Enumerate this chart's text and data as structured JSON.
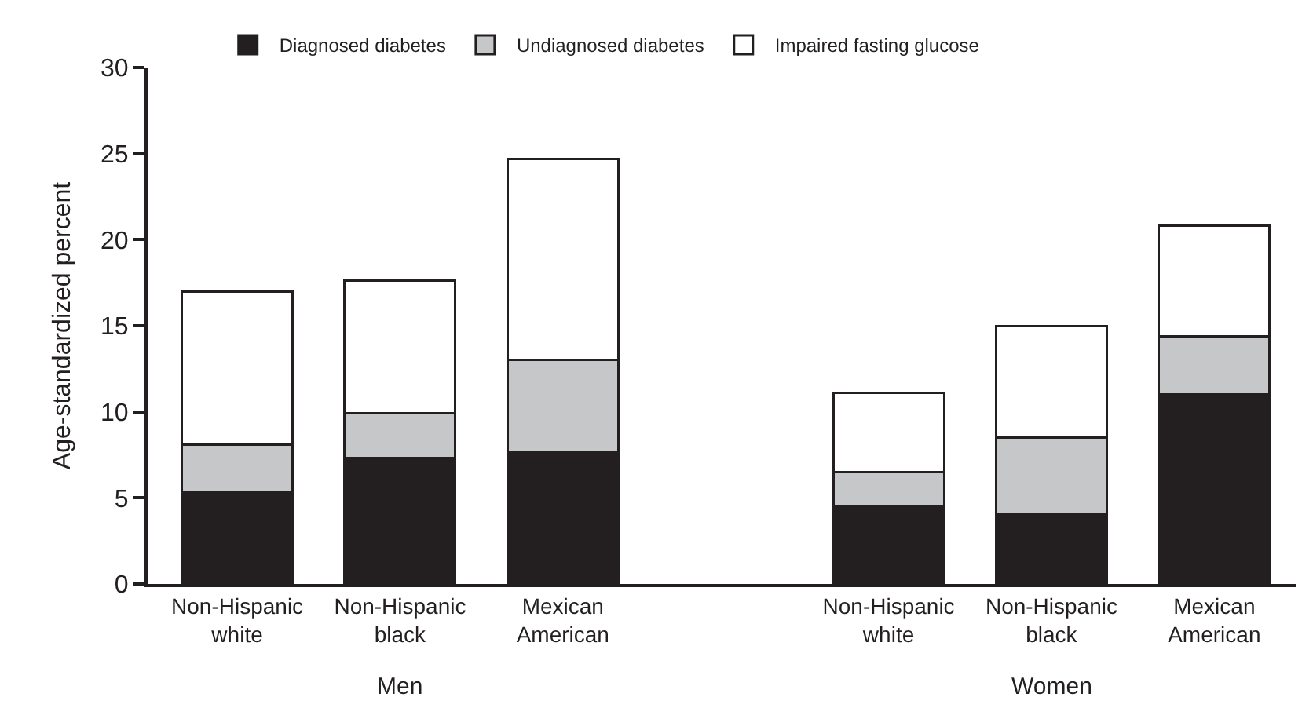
{
  "chart_data": {
    "type": "bar",
    "stacked": true,
    "ylabel": "Age-standardized percent",
    "categories": [
      "Non-Hispanic white",
      "Non-Hispanic black",
      "Mexican American",
      "Non-Hispanic white",
      "Non-Hispanic black",
      "Mexican American"
    ],
    "series": [
      {
        "name": "Diagnosed diabetes",
        "color": "#231f20",
        "values": [
          5.3,
          7.3,
          7.7,
          4.5,
          4.1,
          11.0
        ]
      },
      {
        "name": "Undiagnosed diabetes",
        "color": "#c6c7c9",
        "values": [
          2.8,
          2.6,
          5.3,
          2.0,
          4.4,
          3.4
        ]
      },
      {
        "name": "Impaired fasting glucose",
        "color": "#ffffff",
        "values": [
          8.9,
          7.7,
          11.7,
          4.6,
          6.5,
          6.4
        ]
      }
    ],
    "annotations": [
      "Men",
      "Women"
    ],
    "ylim": [
      0,
      30
    ],
    "yticks": [
      0,
      5,
      10,
      15,
      20,
      25,
      30
    ],
    "legend": "top"
  }
}
